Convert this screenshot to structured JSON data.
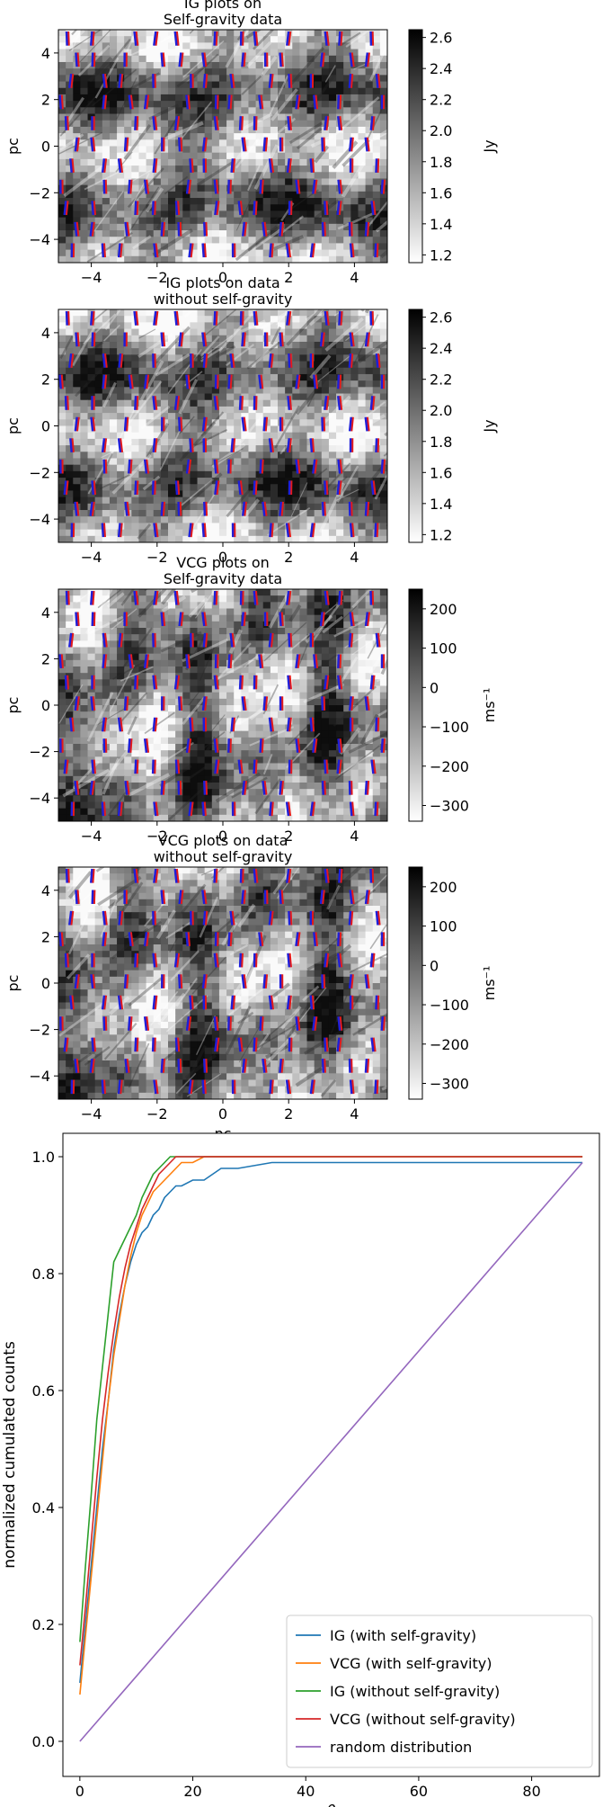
{
  "chart_data": [
    {
      "type": "heatmap",
      "title_lines": [
        "IG plots on",
        "Self-gravity data"
      ],
      "xlabel": "",
      "ylabel": "pc",
      "xlim": [
        -5,
        5
      ],
      "ylim": [
        -5,
        5
      ],
      "xticks": [
        -4,
        -2,
        0,
        2,
        4
      ],
      "yticks": [
        -4,
        -2,
        0,
        2,
        4
      ],
      "colorbar": {
        "label": "Jy",
        "range": [
          1.15,
          2.65
        ],
        "ticks": [
          1.2,
          1.4,
          1.6,
          1.8,
          2.0,
          2.2,
          2.4,
          2.6
        ]
      },
      "field_lines_x": [
        -4.7,
        -3.8,
        -2.9,
        -2.1,
        -1.2,
        -0.4,
        0.4,
        1.2,
        2.0,
        2.9,
        3.7,
        4.6
      ],
      "vector_colors": {
        "gradient": "#e31a1c",
        "field": "#1f1fd8"
      }
    },
    {
      "type": "heatmap",
      "title_lines": [
        "IG plots on data",
        "without self-gravity"
      ],
      "xlabel": "",
      "ylabel": "pc",
      "xlim": [
        -5,
        5
      ],
      "ylim": [
        -5,
        5
      ],
      "xticks": [
        -4,
        -2,
        0,
        2,
        4
      ],
      "yticks": [
        -4,
        -2,
        0,
        2,
        4
      ],
      "colorbar": {
        "label": "Jy",
        "range": [
          1.15,
          2.65
        ],
        "ticks": [
          1.2,
          1.4,
          1.6,
          1.8,
          2.0,
          2.2,
          2.4,
          2.6
        ]
      },
      "field_lines_x": [
        -4.7,
        -3.8,
        -2.9,
        -2.1,
        -1.2,
        -0.4,
        0.4,
        1.2,
        2.0,
        2.9,
        3.7,
        4.6
      ],
      "vector_colors": {
        "gradient": "#e31a1c",
        "field": "#1f1fd8"
      }
    },
    {
      "type": "heatmap",
      "title_lines": [
        "VCG plots on",
        "Self-gravity data"
      ],
      "xlabel": "",
      "ylabel": "pc",
      "xlim": [
        -5,
        5
      ],
      "ylim": [
        -5,
        5
      ],
      "xticks": [
        -4,
        -2,
        0,
        2,
        4
      ],
      "yticks": [
        -4,
        -2,
        0,
        2,
        4
      ],
      "colorbar": {
        "label": "ms⁻¹",
        "range": [
          -340,
          250
        ],
        "ticks": [
          200,
          100,
          0,
          -100,
          -200,
          -300
        ]
      },
      "field_lines_x": [
        -4.7,
        -3.8,
        -2.9,
        -2.1,
        -1.2,
        -0.4,
        0.4,
        1.2,
        2.0,
        2.9,
        3.7,
        4.6
      ],
      "vector_colors": {
        "gradient": "#e31a1c",
        "field": "#1f1fd8"
      }
    },
    {
      "type": "heatmap",
      "title_lines": [
        "VCG plots on data",
        "without self-gravity"
      ],
      "xlabel": "pc",
      "ylabel": "pc",
      "xlim": [
        -5,
        5
      ],
      "ylim": [
        -5,
        5
      ],
      "xticks": [
        -4,
        -2,
        0,
        2,
        4
      ],
      "yticks": [
        -4,
        -2,
        0,
        2,
        4
      ],
      "colorbar": {
        "label": "ms⁻¹",
        "range": [
          -340,
          250
        ],
        "ticks": [
          200,
          100,
          0,
          -100,
          -200,
          -300
        ]
      },
      "field_lines_x": [
        -4.7,
        -3.8,
        -2.9,
        -2.1,
        -1.2,
        -0.4,
        0.4,
        1.2,
        2.0,
        2.9,
        3.7,
        4.6
      ],
      "vector_colors": {
        "gradient": "#e31a1c",
        "field": "#1f1fd8"
      }
    },
    {
      "type": "line",
      "title": "",
      "xlabel": "θ",
      "ylabel": "normalized cumulated counts",
      "xlim": [
        -3,
        92
      ],
      "ylim": [
        -0.06,
        1.04
      ],
      "xticks": [
        0,
        20,
        40,
        60,
        80
      ],
      "yticks": [
        0.0,
        0.2,
        0.4,
        0.6,
        0.8,
        1.0
      ],
      "legend_position": "lower-right",
      "series": [
        {
          "name": "IG (with self-gravity)",
          "color": "#1f77b4",
          "x": [
            0,
            1,
            2,
            3,
            4,
            5,
            6,
            7,
            8,
            9,
            10,
            11,
            12,
            13,
            14,
            15,
            16,
            17,
            18,
            20,
            22,
            25,
            28,
            34,
            40,
            60,
            89
          ],
          "y": [
            0.1,
            0.2,
            0.3,
            0.4,
            0.5,
            0.58,
            0.67,
            0.73,
            0.78,
            0.82,
            0.85,
            0.87,
            0.88,
            0.9,
            0.91,
            0.93,
            0.94,
            0.95,
            0.95,
            0.96,
            0.96,
            0.98,
            0.98,
            0.99,
            0.99,
            0.99,
            0.99
          ]
        },
        {
          "name": "VCG (with self-gravity)",
          "color": "#ff7f0e",
          "x": [
            0,
            1,
            2,
            3,
            4,
            5,
            6,
            7,
            8,
            9,
            10,
            11,
            12,
            13,
            14,
            15,
            16,
            18,
            20,
            22,
            30,
            60,
            89
          ],
          "y": [
            0.08,
            0.18,
            0.28,
            0.38,
            0.48,
            0.58,
            0.66,
            0.72,
            0.78,
            0.83,
            0.87,
            0.9,
            0.92,
            0.94,
            0.95,
            0.96,
            0.97,
            0.99,
            0.99,
            1.0,
            1.0,
            1.0,
            1.0
          ]
        },
        {
          "name": "IG (without self-gravity)",
          "color": "#2ca02c",
          "x": [
            0,
            1,
            2,
            3,
            4,
            5,
            6,
            7,
            8,
            9,
            10,
            11,
            12,
            13,
            14,
            15,
            16,
            17,
            18,
            20,
            89
          ],
          "y": [
            0.17,
            0.3,
            0.42,
            0.55,
            0.64,
            0.73,
            0.82,
            0.84,
            0.86,
            0.88,
            0.9,
            0.93,
            0.95,
            0.97,
            0.98,
            0.99,
            1.0,
            1.0,
            1.0,
            1.0,
            1.0
          ]
        },
        {
          "name": "VCG (without self-gravity)",
          "color": "#d62728",
          "x": [
            0,
            1,
            2,
            3,
            4,
            5,
            6,
            7,
            8,
            9,
            10,
            11,
            12,
            13,
            14,
            15,
            16,
            17,
            18,
            20,
            89
          ],
          "y": [
            0.13,
            0.23,
            0.34,
            0.45,
            0.55,
            0.63,
            0.7,
            0.76,
            0.81,
            0.85,
            0.88,
            0.91,
            0.93,
            0.95,
            0.97,
            0.98,
            0.99,
            1.0,
            1.0,
            1.0,
            1.0
          ]
        },
        {
          "name": "random distribution",
          "color": "#9467bd",
          "x": [
            0,
            89
          ],
          "y": [
            0.0,
            0.99
          ]
        }
      ]
    }
  ]
}
